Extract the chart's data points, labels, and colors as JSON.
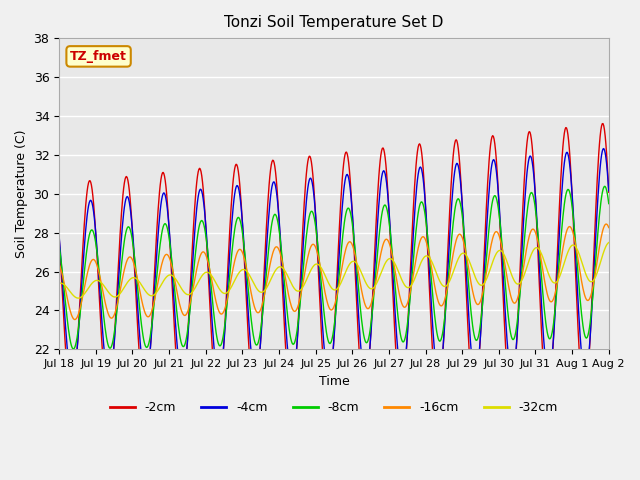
{
  "title": "Tonzi Soil Temperature Set D",
  "xlabel": "Time",
  "ylabel": "Soil Temperature (C)",
  "ylim": [
    22,
    38
  ],
  "yticks": [
    22,
    24,
    26,
    28,
    30,
    32,
    34,
    36,
    38
  ],
  "xtick_labels": [
    "Jul 18",
    "Jul 19",
    "Jul 20",
    "Jul 21",
    "Jul 22",
    "Jul 23",
    "Jul 24",
    "Jul 25",
    "Jul 26",
    "Jul 27",
    "Jul 28",
    "Jul 29",
    "Jul 30",
    "Jul 31",
    "Aug 1",
    "Aug 2"
  ],
  "series_colors": [
    "#dd0000",
    "#0000dd",
    "#00cc00",
    "#ff8800",
    "#dddd00"
  ],
  "series_labels": [
    "-2cm",
    "-4cm",
    "-8cm",
    "-16cm",
    "-32cm"
  ],
  "legend_label": "TZ_fmet",
  "legend_label_color": "#cc0000",
  "legend_bg": "#ffffcc",
  "bg_color": "#e8e8e8",
  "grid_color": "#ffffff",
  "num_days": 16,
  "pts_per_day": 48,
  "base_temp": 25.0,
  "trend_total": 1.5,
  "amp_2cm": 5.5,
  "amp_4cm": 4.5,
  "amp_8cm": 3.0,
  "amp_16cm": 1.5,
  "amp_32cm": 0.4,
  "phase_shift_4cm": 0.15,
  "phase_shift_8cm": 0.35,
  "phase_shift_16cm": 0.6,
  "phase_shift_32cm": 1.2
}
